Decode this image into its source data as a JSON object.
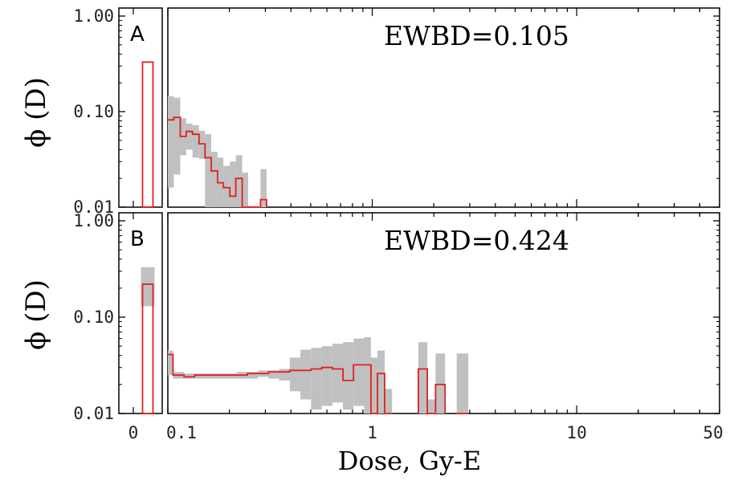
{
  "chart_data": {
    "type": "histogram",
    "x_label": "Dose, Gy-E",
    "y_label": "ϕ (D)",
    "x_scale": "log",
    "x_ticks": [
      "0",
      "0.1",
      "1",
      "10",
      "50"
    ],
    "y_scale": "log",
    "y_ticks": [
      "1.00",
      "0.10",
      "0.01"
    ],
    "ylim": [
      0.01,
      1.0
    ],
    "xlim_log": [
      0.1,
      50
    ],
    "colors": {
      "median": "#e02020",
      "band": "#c0c0c0",
      "frame": "#000000"
    },
    "panels": [
      {
        "label": "A",
        "annotation": "EWBD=0.105",
        "zero_bin": {
          "value": 0.33,
          "low": null,
          "high": null
        },
        "bins": [
          {
            "x0": 0.1,
            "x1": 0.107,
            "value": 0.082,
            "low": 0.016,
            "high": 0.145
          },
          {
            "x0": 0.107,
            "x1": 0.115,
            "value": 0.087,
            "low": 0.022,
            "high": 0.14
          },
          {
            "x0": 0.115,
            "x1": 0.123,
            "value": 0.055,
            "low": 0.035,
            "high": 0.085
          },
          {
            "x0": 0.123,
            "x1": 0.132,
            "value": 0.062,
            "low": 0.04,
            "high": 0.075
          },
          {
            "x0": 0.132,
            "x1": 0.142,
            "value": 0.058,
            "low": 0.033,
            "high": 0.072
          },
          {
            "x0": 0.142,
            "x1": 0.152,
            "value": 0.046,
            "low": 0.032,
            "high": 0.063
          },
          {
            "x0": 0.152,
            "x1": 0.163,
            "value": 0.033,
            "low": 0.01,
            "high": 0.058
          },
          {
            "x0": 0.163,
            "x1": 0.175,
            "value": 0.024,
            "low": 0.01,
            "high": 0.038
          },
          {
            "x0": 0.175,
            "x1": 0.187,
            "value": 0.018,
            "low": 0.01,
            "high": 0.033
          },
          {
            "x0": 0.187,
            "x1": 0.201,
            "value": 0.016,
            "low": 0.01,
            "high": 0.027
          },
          {
            "x0": 0.201,
            "x1": 0.215,
            "value": 0.013,
            "low": 0.01,
            "high": 0.03
          },
          {
            "x0": 0.215,
            "x1": 0.231,
            "value": 0.02,
            "low": 0.01,
            "high": 0.035
          },
          {
            "x0": 0.231,
            "x1": 0.247,
            "value": 0.01,
            "low": 0.01,
            "high": 0.023
          },
          {
            "x0": 0.247,
            "x1": 0.265,
            "value": 0.01,
            "low": 0.01,
            "high": 0.01
          },
          {
            "x0": 0.265,
            "x1": 0.284,
            "value": 0.01,
            "low": 0.01,
            "high": 0.01
          },
          {
            "x0": 0.284,
            "x1": 0.304,
            "value": 0.012,
            "low": 0.01,
            "high": 0.025
          }
        ]
      },
      {
        "label": "B",
        "annotation": "EWBD=0.424",
        "zero_bin": {
          "value": 0.22,
          "low": 0.13,
          "high": 0.33
        },
        "bins": [
          {
            "x0": 0.1,
            "x1": 0.106,
            "value": 0.041,
            "low": 0.025,
            "high": 0.045
          },
          {
            "x0": 0.106,
            "x1": 0.12,
            "value": 0.025,
            "low": 0.023,
            "high": 0.027
          },
          {
            "x0": 0.12,
            "x1": 0.135,
            "value": 0.024,
            "low": 0.023,
            "high": 0.026
          },
          {
            "x0": 0.135,
            "x1": 0.152,
            "value": 0.025,
            "low": 0.023,
            "high": 0.026
          },
          {
            "x0": 0.152,
            "x1": 0.171,
            "value": 0.025,
            "low": 0.023,
            "high": 0.026
          },
          {
            "x0": 0.171,
            "x1": 0.193,
            "value": 0.025,
            "low": 0.023,
            "high": 0.026
          },
          {
            "x0": 0.193,
            "x1": 0.217,
            "value": 0.025,
            "low": 0.023,
            "high": 0.026
          },
          {
            "x0": 0.217,
            "x1": 0.245,
            "value": 0.025,
            "low": 0.023,
            "high": 0.027
          },
          {
            "x0": 0.245,
            "x1": 0.276,
            "value": 0.026,
            "low": 0.023,
            "high": 0.027
          },
          {
            "x0": 0.276,
            "x1": 0.311,
            "value": 0.026,
            "low": 0.024,
            "high": 0.028
          },
          {
            "x0": 0.311,
            "x1": 0.35,
            "value": 0.027,
            "low": 0.023,
            "high": 0.028
          },
          {
            "x0": 0.35,
            "x1": 0.395,
            "value": 0.027,
            "low": 0.022,
            "high": 0.029
          },
          {
            "x0": 0.395,
            "x1": 0.445,
            "value": 0.028,
            "low": 0.017,
            "high": 0.038
          },
          {
            "x0": 0.445,
            "x1": 0.502,
            "value": 0.028,
            "low": 0.014,
            "high": 0.046
          },
          {
            "x0": 0.502,
            "x1": 0.566,
            "value": 0.029,
            "low": 0.011,
            "high": 0.048
          },
          {
            "x0": 0.566,
            "x1": 0.638,
            "value": 0.03,
            "low": 0.012,
            "high": 0.05
          },
          {
            "x0": 0.638,
            "x1": 0.719,
            "value": 0.029,
            "low": 0.013,
            "high": 0.053
          },
          {
            "x0": 0.719,
            "x1": 0.81,
            "value": 0.022,
            "low": 0.011,
            "high": 0.055
          },
          {
            "x0": 0.81,
            "x1": 0.913,
            "value": 0.032,
            "low": 0.012,
            "high": 0.06
          },
          {
            "x0": 0.913,
            "x1": 0.985,
            "value": 0.032,
            "low": 0.01,
            "high": 0.062
          },
          {
            "x0": 0.985,
            "x1": 1.06,
            "value": 0.01,
            "low": 0.01,
            "high": 0.038
          },
          {
            "x0": 1.06,
            "x1": 1.15,
            "value": 0.026,
            "low": 0.01,
            "high": 0.045
          },
          {
            "x0": 1.15,
            "x1": 1.25,
            "value": 0.01,
            "low": 0.01,
            "high": 0.018
          },
          {
            "x0": 1.68,
            "x1": 1.86,
            "value": 0.029,
            "low": 0.01,
            "high": 0.055
          },
          {
            "x0": 1.86,
            "x1": 2.04,
            "value": 0.01,
            "low": 0.01,
            "high": 0.014
          },
          {
            "x0": 2.04,
            "x1": 2.27,
            "value": 0.02,
            "low": 0.01,
            "high": 0.042
          },
          {
            "x0": 2.59,
            "x1": 2.95,
            "value": 0.01,
            "low": 0.01,
            "high": 0.042
          }
        ]
      }
    ]
  }
}
